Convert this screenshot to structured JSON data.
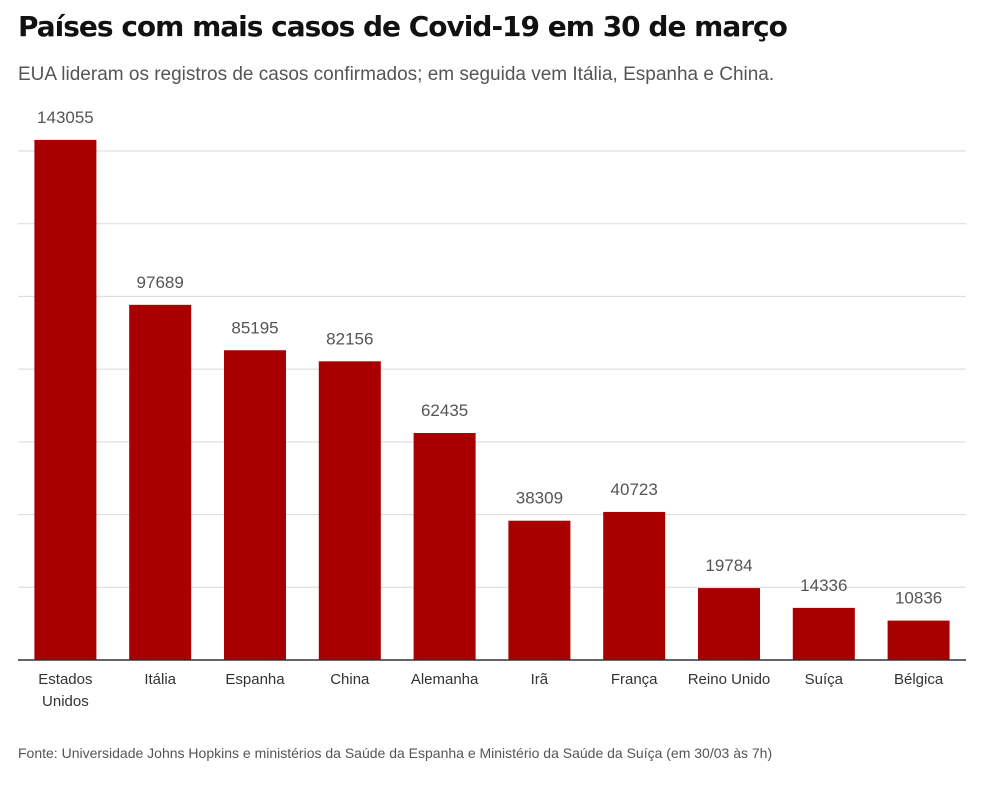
{
  "title": "Países com mais casos de Covid-19 em 30 de março",
  "subtitle": "EUA lideram os registros de casos confirmados; em seguida vem Itália, Espanha e China.",
  "source": "Fonte: Universidade Johns Hopkins e ministérios da Saúde da Espanha e Ministério da Saúde da Suíça (em 30/03 às 7h)",
  "colors": {
    "bar": "#a80000",
    "grid": "#d9d9d9",
    "axis": "#333333"
  },
  "chart_data": {
    "type": "bar",
    "categories": [
      "Estados Unidos",
      "Itália",
      "Espanha",
      "China",
      "Alemanha",
      "Irã",
      "França",
      "Reino Unido",
      "Suíça",
      "Bélgica"
    ],
    "values": [
      143055,
      97689,
      85195,
      82156,
      62435,
      38309,
      40723,
      19784,
      14336,
      10836
    ],
    "value_labels": [
      "143055",
      "97689",
      "85195",
      "82156",
      "62435",
      "38309",
      "40723",
      "19784",
      "14336",
      "10836"
    ],
    "ylim": [
      0,
      140000
    ],
    "gridlines": [
      20000,
      40000,
      60000,
      80000,
      100000,
      120000,
      140000
    ],
    "grid": true,
    "y_tick_labels": false
  }
}
